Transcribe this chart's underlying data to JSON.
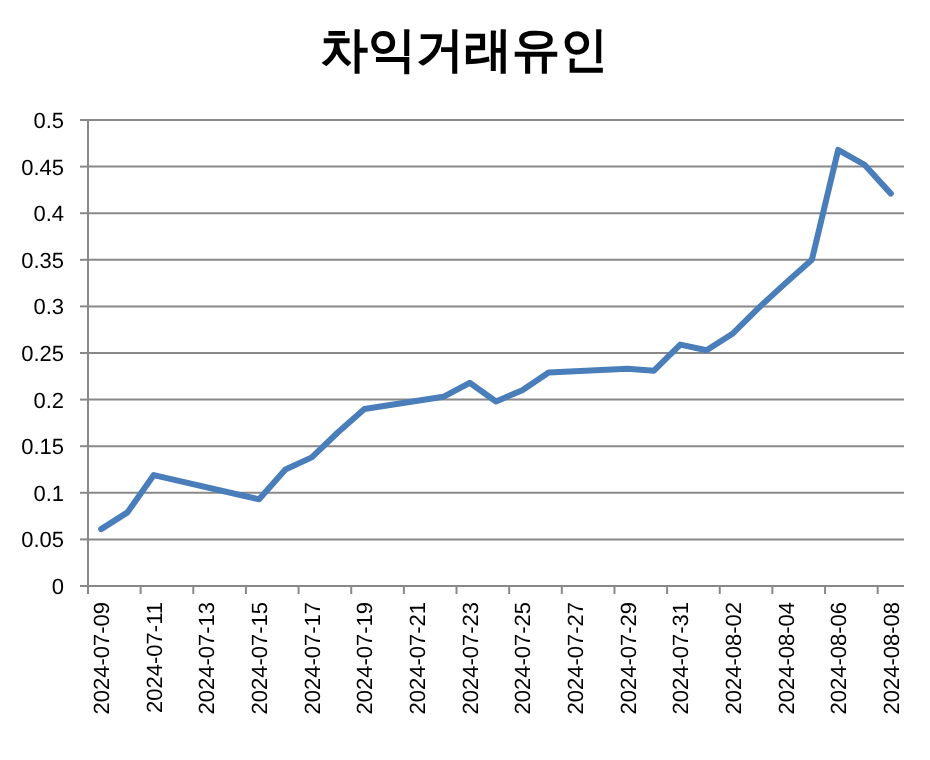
{
  "chart_data": {
    "type": "line",
    "title": "차익거래유인",
    "x": [
      "2024-07-09",
      "2024-07-10",
      "2024-07-11",
      "2024-07-15",
      "2024-07-16",
      "2024-07-17",
      "2024-07-18",
      "2024-07-19",
      "2024-07-22",
      "2024-07-23",
      "2024-07-24",
      "2024-07-25",
      "2024-07-26",
      "2024-07-29",
      "2024-07-30",
      "2024-07-31",
      "2024-08-01",
      "2024-08-02",
      "2024-08-03",
      "2024-08-04",
      "2024-08-05",
      "2024-08-06",
      "2024-08-07",
      "2024-08-08"
    ],
    "series": [
      {
        "color": "#4a7ebb",
        "values": [
          0.061,
          0.079,
          0.119,
          0.093,
          0.125,
          0.138,
          0.165,
          0.19,
          0.203,
          0.218,
          0.198,
          0.21,
          0.229,
          0.233,
          0.231,
          0.259,
          0.253,
          0.271,
          0.299,
          0.325,
          0.35,
          0.468,
          0.452,
          0.421
        ]
      }
    ],
    "xlim": [
      "2024-07-08T12:00",
      "2024-08-08T12:00"
    ],
    "xticks": [
      "2024-07-09",
      "2024-07-11",
      "2024-07-13",
      "2024-07-15",
      "2024-07-17",
      "2024-07-19",
      "2024-07-21",
      "2024-07-23",
      "2024-07-25",
      "2024-07-27",
      "2024-07-29",
      "2024-07-31",
      "2024-08-02",
      "2024-08-04",
      "2024-08-06",
      "2024-08-08"
    ],
    "ylim": [
      0,
      0.5
    ],
    "yticks": [
      0,
      0.05,
      0.1,
      0.15,
      0.2,
      0.25,
      0.3,
      0.35,
      0.4,
      0.45,
      0.5
    ],
    "grid": "y",
    "marker": "none",
    "line_style": "solid"
  }
}
